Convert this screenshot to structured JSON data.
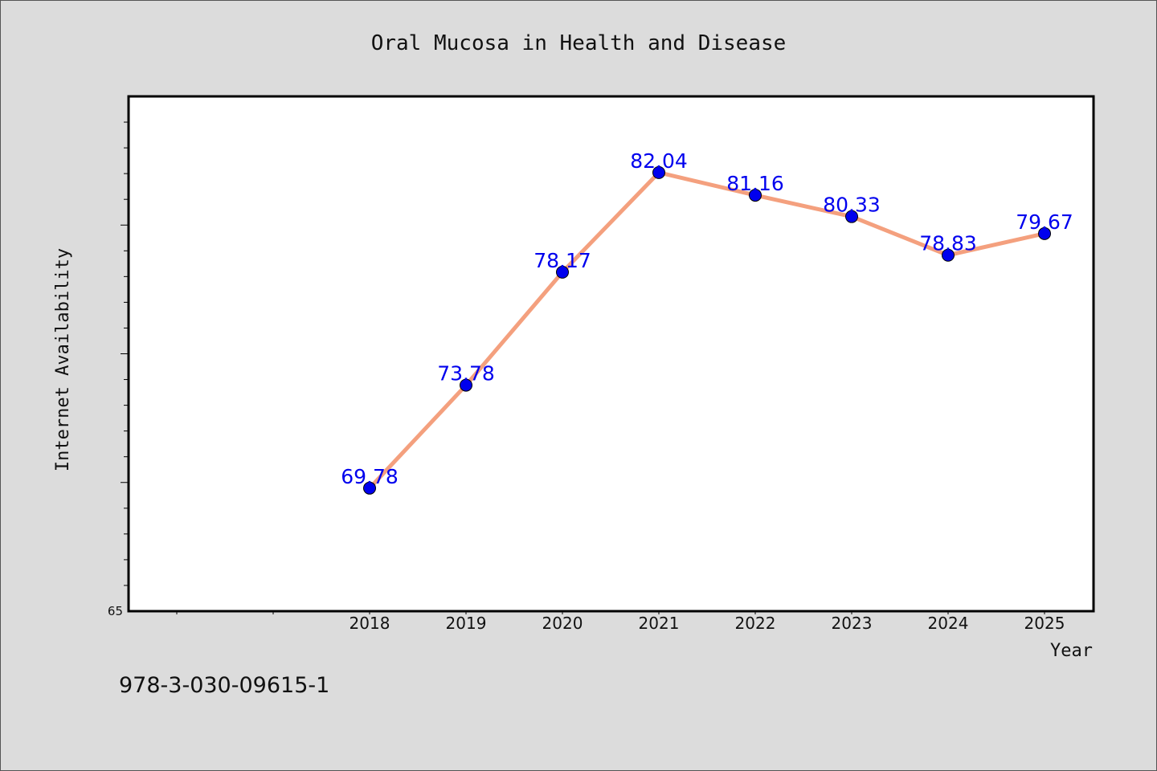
{
  "chart_data": {
    "type": "line",
    "title": "Oral Mucosa in Health and Disease",
    "xlabel": "Year",
    "ylabel": "Internet Availability",
    "categories": [
      "2018",
      "2019",
      "2020",
      "2021",
      "2022",
      "2023",
      "2024",
      "2025"
    ],
    "series": [
      {
        "values": [
          69.78,
          73.78,
          78.17,
          82.04,
          81.16,
          80.33,
          78.83,
          79.67
        ],
        "labels": [
          "69.78",
          "73.78",
          "78.17",
          "82.04",
          "81.16",
          "80.33",
          "78.83",
          "79.67"
        ],
        "line_color": "#f4a07e",
        "marker_color": "#0000ee"
      }
    ],
    "yticks": [
      "65"
    ],
    "ylim": [
      65,
      85
    ],
    "grid": false,
    "legend": "none"
  },
  "footer": {
    "isbn": "978-3-030-09615-1"
  }
}
